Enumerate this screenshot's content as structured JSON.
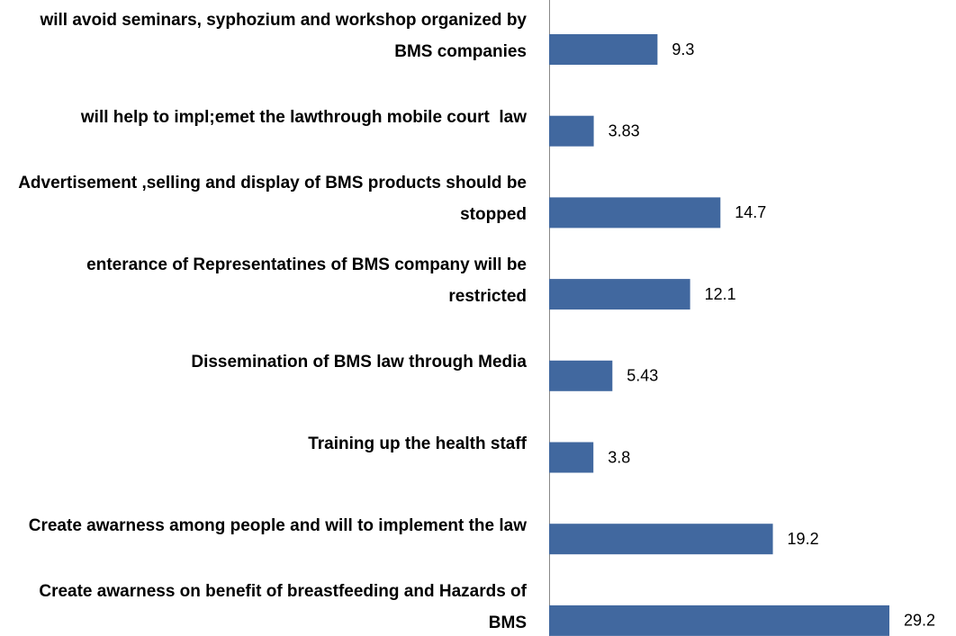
{
  "chart_data": {
    "type": "bar",
    "orientation": "horizontal",
    "categories": [
      "will avoid seminars, syphozium and workshop organized by BMS companies",
      "will help to impl;emet the lawthrough mobile court  law",
      "Advertisement ,selling and display of BMS products should be stopped",
      "enterance of Representatines of BMS company will be restricted",
      "Dissemination of BMS law through Media",
      "Training up the health staff",
      "Create awarness among people and will to implement the law",
      "Create awarness on benefit of breastfeeding and Hazards of BMS"
    ],
    "values": [
      9.3,
      3.83,
      14.7,
      12.1,
      5.43,
      3.8,
      19.2,
      29.2
    ],
    "color": "#41689f"
  }
}
